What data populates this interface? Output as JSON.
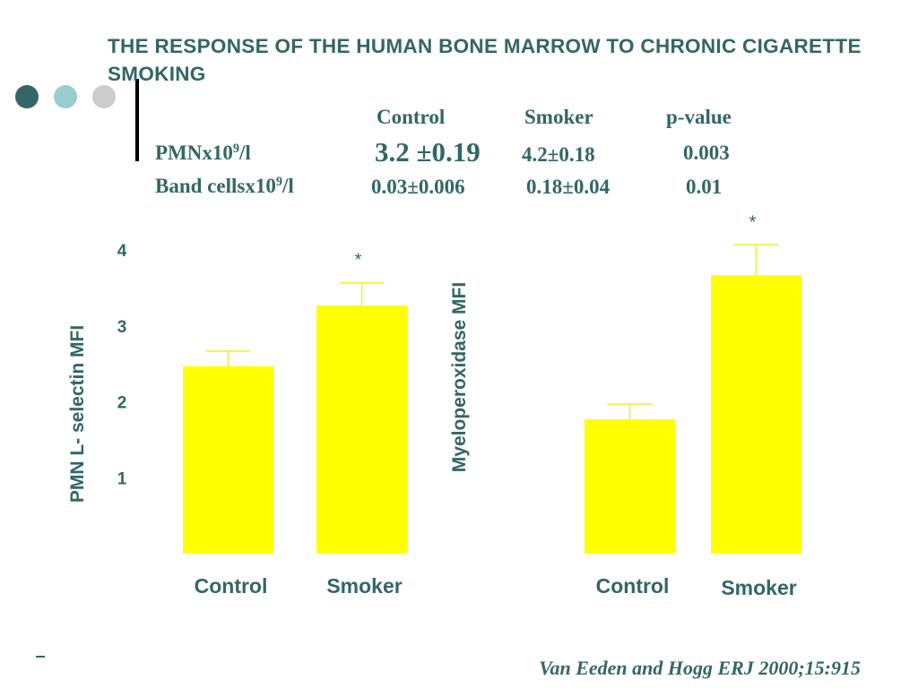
{
  "slide": {
    "title": "THE RESPONSE OF THE HUMAN BONE MARROW TO CHRONIC CIGARETTE SMOKING",
    "citation": "Van Eeden and Hogg ERJ 2000;15:915"
  },
  "table": {
    "headers": [
      "Control",
      "Smoker",
      "p-value"
    ],
    "rows": [
      {
        "label_main": "PMNx10",
        "label_sup": "9",
        "label_tail": "/l",
        "control": "3.2 ±0.19",
        "smoker": "4.2±0.18",
        "p": "0.003"
      },
      {
        "label_main": "Band cellsx10",
        "label_sup": "9",
        "label_tail": "/l",
        "control": "0.03±0.006",
        "smoker": "0.18±0.04",
        "p": "0.01"
      }
    ]
  },
  "colors": {
    "text": "#336666",
    "bar": "#ffff00",
    "error_bar": "#eeee33",
    "dots": [
      "#336666",
      "#99cccc",
      "#cccccc"
    ]
  },
  "chart_data": [
    {
      "type": "bar",
      "ylabel": "PMN  L- selectin MFI",
      "ylim": [
        0,
        4.25
      ],
      "yticks": [
        1,
        2,
        3,
        4
      ],
      "categories": [
        "Control",
        "Smoker"
      ],
      "values": [
        2.47,
        3.27
      ],
      "errors": [
        0.2,
        0.3
      ],
      "annotations": [
        "",
        "*"
      ]
    },
    {
      "type": "bar",
      "ylabel": "Myeloperoxidase MFI",
      "yticks": [],
      "categories": [
        "Control",
        "Smoker"
      ],
      "values": [
        1.77,
        3.67
      ],
      "errors": [
        0.2,
        0.4
      ],
      "annotations": [
        "",
        "*"
      ]
    }
  ]
}
